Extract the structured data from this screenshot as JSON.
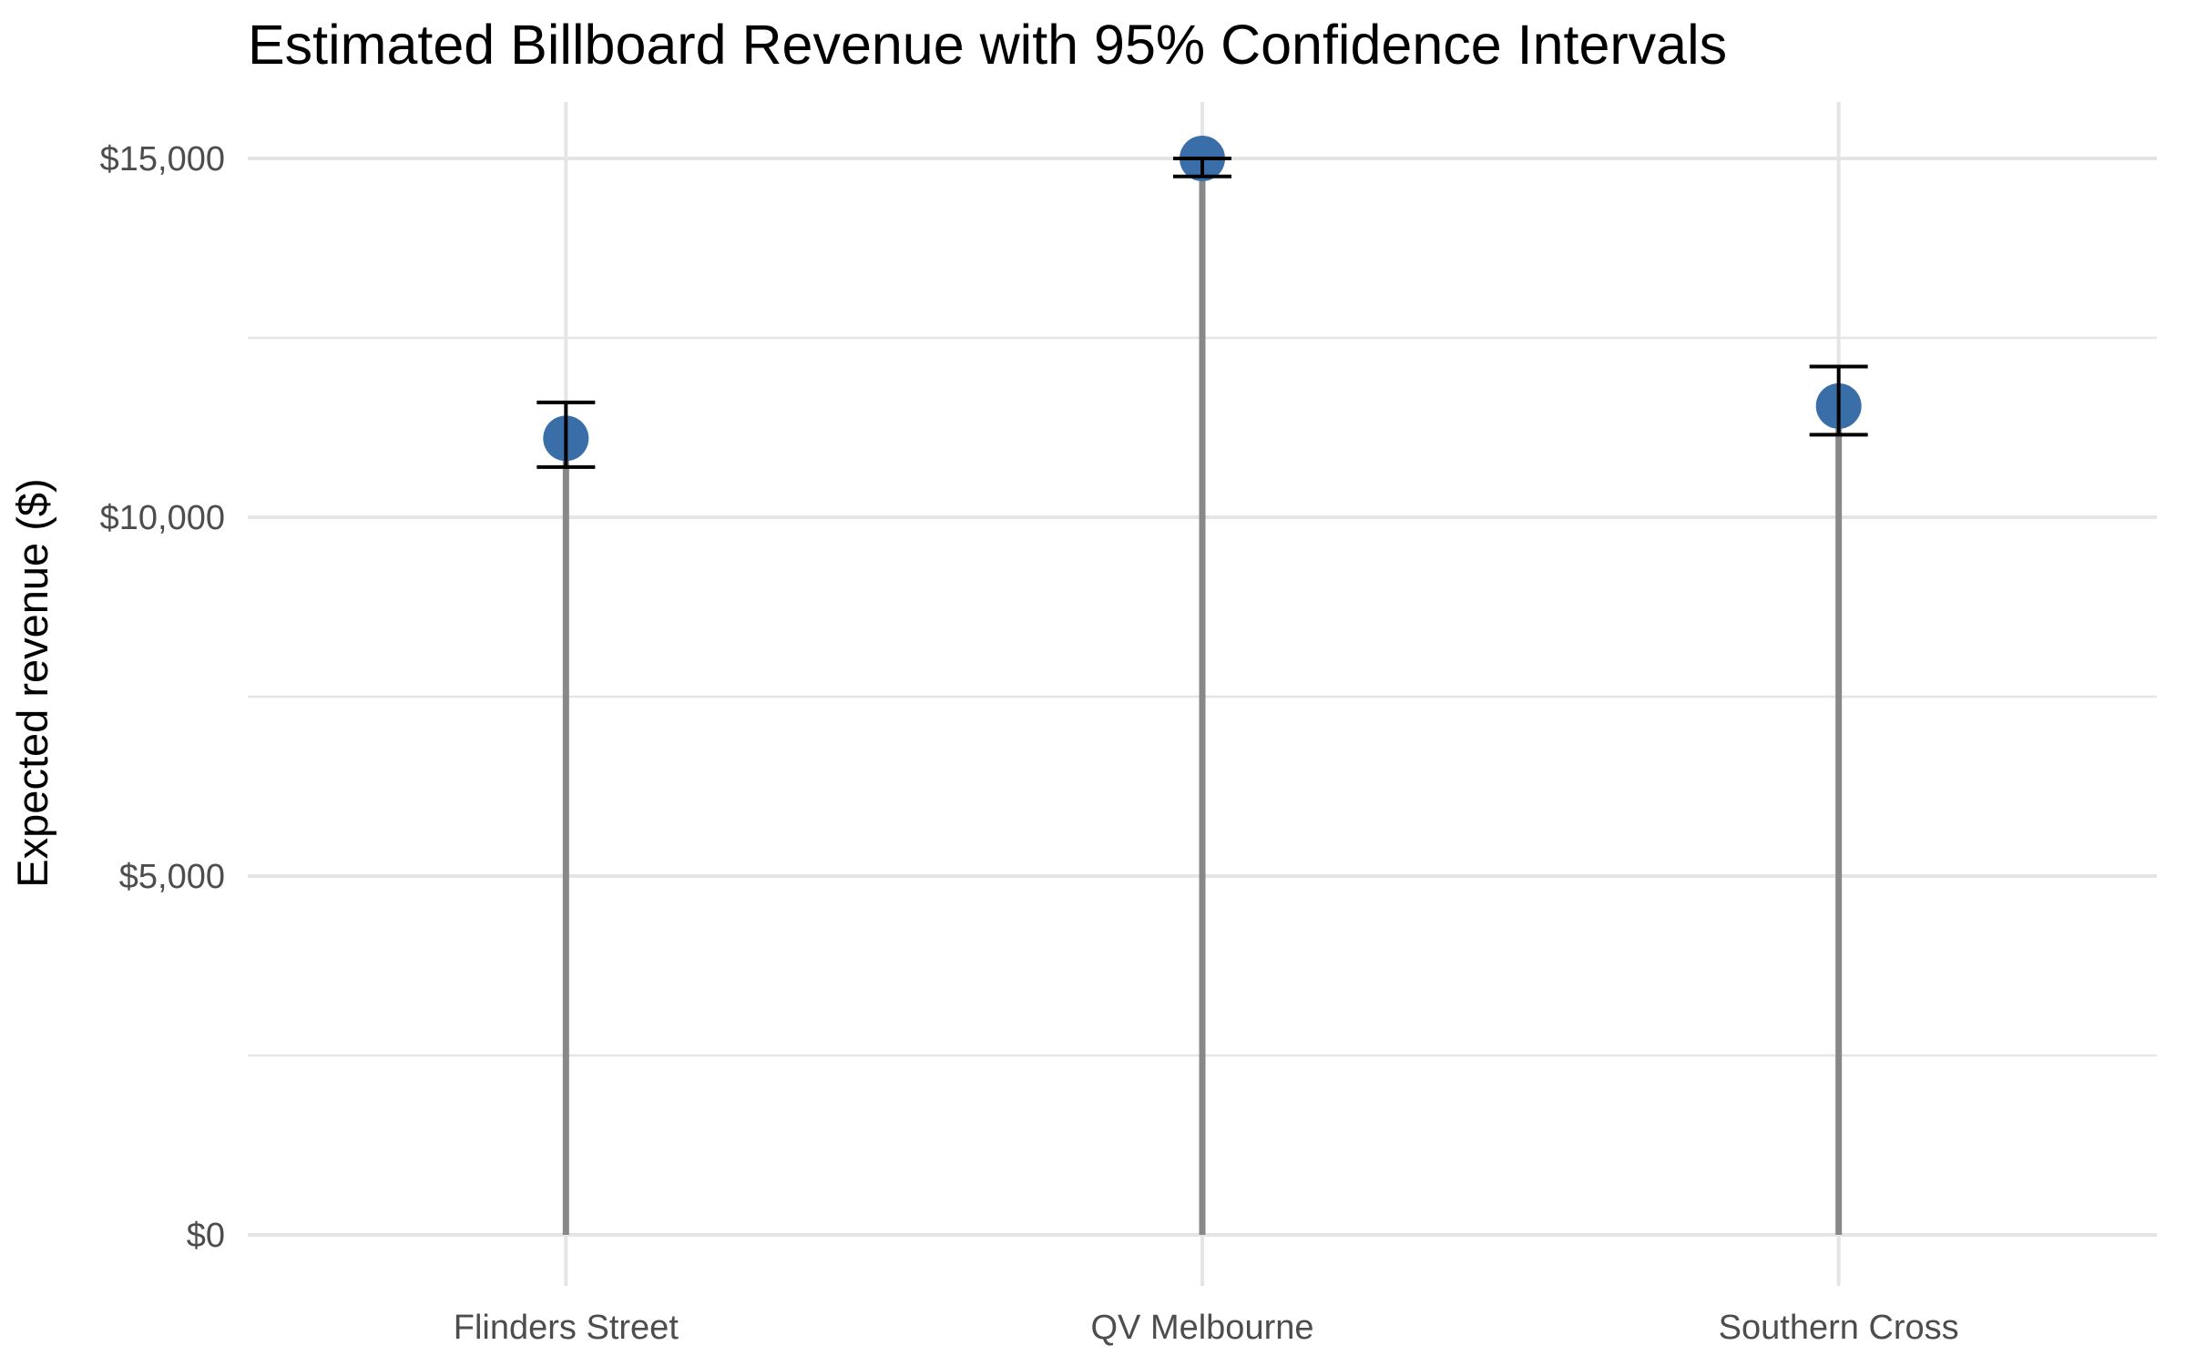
{
  "chart_data": {
    "type": "scatter",
    "title": "Estimated Billboard Revenue with 95% Confidence Intervals",
    "xlabel": "",
    "ylabel": "Expected revenue ($)",
    "categories": [
      "Flinders Street",
      "QV Melbourne",
      "Southern Cross"
    ],
    "values": [
      11100,
      15000,
      11550
    ],
    "ci_lower": [
      10700,
      14750,
      11150
    ],
    "ci_upper": [
      11600,
      15000,
      12100
    ],
    "ylim": [
      0,
      15700
    ],
    "yticks": [
      0,
      5000,
      10000,
      15000
    ],
    "ytick_labels": [
      "$0",
      "$5,000",
      "$10,000",
      "$15,000"
    ],
    "grid": true,
    "legend": "none",
    "colors": {
      "point": "#3a6ea8",
      "stem": "#888888",
      "errorbar": "#000000",
      "grid": "#e5e5e5"
    }
  }
}
